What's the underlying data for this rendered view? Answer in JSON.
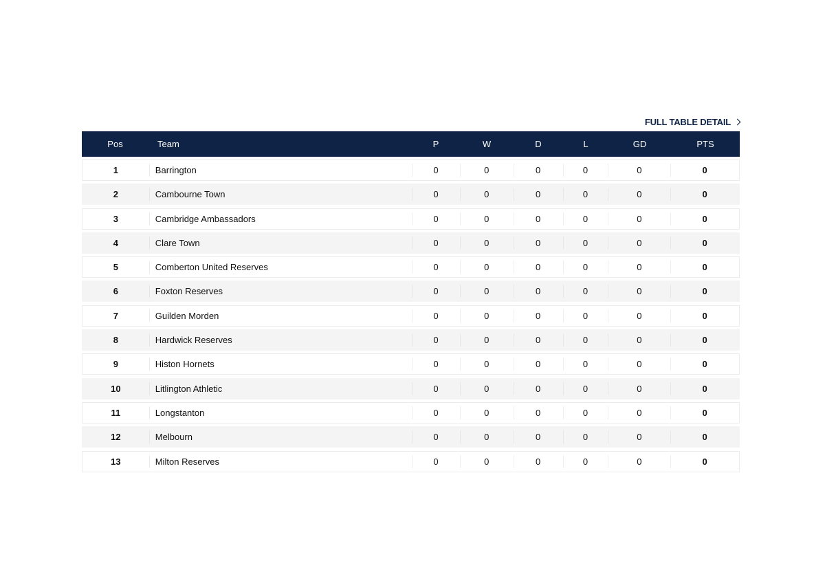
{
  "links": {
    "full_table": "FULL TABLE DETAIL"
  },
  "table": {
    "headers": {
      "pos": "Pos",
      "team": "Team",
      "p": "P",
      "w": "W",
      "d": "D",
      "l": "L",
      "gd": "GD",
      "pts": "PTS"
    },
    "rows": [
      {
        "pos": "1",
        "team": "Barrington",
        "p": "0",
        "w": "0",
        "d": "0",
        "l": "0",
        "gd": "0",
        "pts": "0"
      },
      {
        "pos": "2",
        "team": "Cambourne Town",
        "p": "0",
        "w": "0",
        "d": "0",
        "l": "0",
        "gd": "0",
        "pts": "0"
      },
      {
        "pos": "3",
        "team": "Cambridge Ambassadors",
        "p": "0",
        "w": "0",
        "d": "0",
        "l": "0",
        "gd": "0",
        "pts": "0"
      },
      {
        "pos": "4",
        "team": "Clare Town",
        "p": "0",
        "w": "0",
        "d": "0",
        "l": "0",
        "gd": "0",
        "pts": "0"
      },
      {
        "pos": "5",
        "team": "Comberton United Reserves",
        "p": "0",
        "w": "0",
        "d": "0",
        "l": "0",
        "gd": "0",
        "pts": "0"
      },
      {
        "pos": "6",
        "team": "Foxton Reserves",
        "p": "0",
        "w": "0",
        "d": "0",
        "l": "0",
        "gd": "0",
        "pts": "0"
      },
      {
        "pos": "7",
        "team": "Guilden Morden",
        "p": "0",
        "w": "0",
        "d": "0",
        "l": "0",
        "gd": "0",
        "pts": "0"
      },
      {
        "pos": "8",
        "team": "Hardwick Reserves",
        "p": "0",
        "w": "0",
        "d": "0",
        "l": "0",
        "gd": "0",
        "pts": "0"
      },
      {
        "pos": "9",
        "team": "Histon Hornets",
        "p": "0",
        "w": "0",
        "d": "0",
        "l": "0",
        "gd": "0",
        "pts": "0"
      },
      {
        "pos": "10",
        "team": "Litlington Athletic",
        "p": "0",
        "w": "0",
        "d": "0",
        "l": "0",
        "gd": "0",
        "pts": "0"
      },
      {
        "pos": "11",
        "team": "Longstanton",
        "p": "0",
        "w": "0",
        "d": "0",
        "l": "0",
        "gd": "0",
        "pts": "0"
      },
      {
        "pos": "12",
        "team": "Melbourn",
        "p": "0",
        "w": "0",
        "d": "0",
        "l": "0",
        "gd": "0",
        "pts": "0"
      },
      {
        "pos": "13",
        "team": "Milton Reserves",
        "p": "0",
        "w": "0",
        "d": "0",
        "l": "0",
        "gd": "0",
        "pts": "0"
      }
    ]
  },
  "icons": {
    "full_table_arrow": "chevron-right-icon"
  },
  "colors": {
    "header_bg": "#0f2346",
    "alt_row_bg": "#f4f4f4",
    "link_color": "#0f2346"
  }
}
